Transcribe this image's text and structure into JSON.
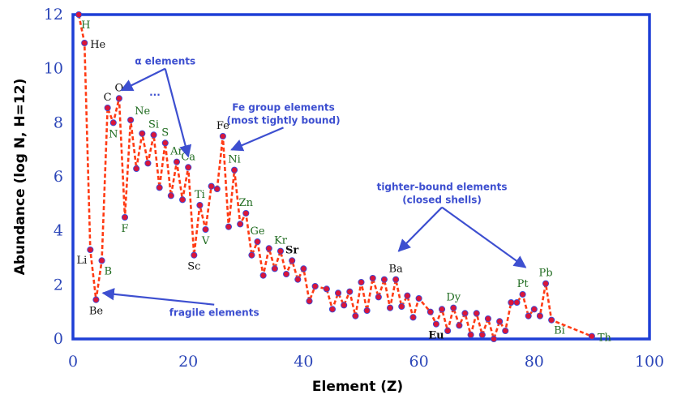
{
  "colors": {
    "frame": "#1e3fd6",
    "tick": "#2c46b8",
    "line": "#ff3b14",
    "marker_fill": "#d9153a",
    "marker_stroke": "#3a4bd8",
    "label_green": "#1f6b1f",
    "label_black": "#111111",
    "annotation": "#3d4fd0"
  },
  "chart_data": {
    "type": "line",
    "xlabel": "Element (Z)",
    "ylabel": "Abundance (log N, H=12)",
    "xlim": [
      0,
      100
    ],
    "ylim": [
      0,
      12
    ],
    "xticks": [
      0,
      20,
      40,
      60,
      80,
      100
    ],
    "yticks": [
      0,
      2,
      4,
      6,
      8,
      10,
      12
    ],
    "grid": false,
    "series": [
      {
        "points": [
          [
            1,
            12.0
          ],
          [
            2,
            10.95
          ],
          [
            3,
            3.3
          ],
          [
            4,
            1.45
          ],
          [
            5,
            2.9
          ],
          [
            6,
            8.55
          ],
          [
            7,
            8.0
          ],
          [
            8,
            8.9
          ],
          [
            9,
            4.5
          ],
          [
            10,
            8.1
          ],
          [
            11,
            6.3
          ],
          [
            12,
            7.6
          ],
          [
            13,
            6.5
          ],
          [
            14,
            7.55
          ],
          [
            15,
            5.6
          ],
          [
            16,
            7.25
          ],
          [
            17,
            5.3
          ],
          [
            18,
            6.55
          ],
          [
            19,
            5.15
          ],
          [
            20,
            6.35
          ],
          [
            21,
            3.1
          ],
          [
            22,
            4.95
          ],
          [
            23,
            4.05
          ],
          [
            24,
            5.65
          ],
          [
            25,
            5.55
          ],
          [
            26,
            7.5
          ],
          [
            27,
            4.15
          ],
          [
            28,
            6.25
          ],
          [
            29,
            4.25
          ],
          [
            30,
            4.65
          ],
          [
            31,
            3.1
          ],
          [
            32,
            3.6
          ],
          [
            33,
            2.35
          ],
          [
            34,
            3.35
          ],
          [
            35,
            2.6
          ],
          [
            36,
            3.25
          ],
          [
            37,
            2.4
          ],
          [
            38,
            2.9
          ],
          [
            39,
            2.2
          ],
          [
            40,
            2.6
          ],
          [
            41,
            1.4
          ],
          [
            42,
            1.95
          ],
          [
            44,
            1.85
          ],
          [
            45,
            1.1
          ],
          [
            46,
            1.7
          ],
          [
            47,
            1.25
          ],
          [
            48,
            1.75
          ],
          [
            49,
            0.85
          ],
          [
            50,
            2.1
          ],
          [
            51,
            1.05
          ],
          [
            52,
            2.25
          ],
          [
            53,
            1.55
          ],
          [
            54,
            2.2
          ],
          [
            55,
            1.15
          ],
          [
            56,
            2.2
          ],
          [
            57,
            1.2
          ],
          [
            58,
            1.6
          ],
          [
            59,
            0.8
          ],
          [
            60,
            1.5
          ],
          [
            62,
            1.0
          ],
          [
            63,
            0.55
          ],
          [
            64,
            1.1
          ],
          [
            65,
            0.3
          ],
          [
            66,
            1.15
          ],
          [
            67,
            0.5
          ],
          [
            68,
            0.95
          ],
          [
            69,
            0.15
          ],
          [
            70,
            0.95
          ],
          [
            71,
            0.15
          ],
          [
            72,
            0.75
          ],
          [
            73,
            0.0
          ],
          [
            74,
            0.65
          ],
          [
            75,
            0.3
          ],
          [
            76,
            1.35
          ],
          [
            77,
            1.35
          ],
          [
            78,
            1.65
          ],
          [
            79,
            0.85
          ],
          [
            80,
            1.1
          ],
          [
            81,
            0.85
          ],
          [
            82,
            2.05
          ],
          [
            83,
            0.7
          ],
          [
            90,
            0.1
          ]
        ]
      }
    ],
    "element_labels": [
      {
        "text": "H",
        "z": 1,
        "y": 12.0,
        "color": "green",
        "bold": false,
        "pos": "below-right"
      },
      {
        "text": "He",
        "z": 2,
        "y": 10.95,
        "color": "black",
        "bold": false,
        "pos": "right"
      },
      {
        "text": "Li",
        "z": 3,
        "y": 3.3,
        "color": "black",
        "bold": false,
        "pos": "below-left"
      },
      {
        "text": "Be",
        "z": 4,
        "y": 1.45,
        "color": "black",
        "bold": false,
        "pos": "below"
      },
      {
        "text": "B",
        "z": 5,
        "y": 2.9,
        "color": "green",
        "bold": false,
        "pos": "below-right"
      },
      {
        "text": "C",
        "z": 6,
        "y": 8.55,
        "color": "black",
        "bold": false,
        "pos": "above"
      },
      {
        "text": "N",
        "z": 7,
        "y": 8.0,
        "color": "green",
        "bold": false,
        "pos": "below"
      },
      {
        "text": "O",
        "z": 8,
        "y": 8.9,
        "color": "black",
        "bold": false,
        "pos": "above"
      },
      {
        "text": "F",
        "z": 9,
        "y": 4.5,
        "color": "green",
        "bold": false,
        "pos": "below"
      },
      {
        "text": "Ne",
        "z": 10,
        "y": 8.1,
        "color": "green",
        "bold": false,
        "pos": "above-right"
      },
      {
        "text": "Si",
        "z": 14,
        "y": 7.55,
        "color": "green",
        "bold": false,
        "pos": "above"
      },
      {
        "text": "S",
        "z": 16,
        "y": 7.25,
        "color": "green",
        "bold": false,
        "pos": "above"
      },
      {
        "text": "Ar",
        "z": 18,
        "y": 6.55,
        "color": "green",
        "bold": false,
        "pos": "above"
      },
      {
        "text": "Ca",
        "z": 20,
        "y": 6.35,
        "color": "green",
        "bold": false,
        "pos": "above"
      },
      {
        "text": "Sc",
        "z": 21,
        "y": 3.1,
        "color": "black",
        "bold": false,
        "pos": "below"
      },
      {
        "text": "Ti",
        "z": 22,
        "y": 4.95,
        "color": "green",
        "bold": false,
        "pos": "above"
      },
      {
        "text": "V",
        "z": 23,
        "y": 4.05,
        "color": "green",
        "bold": false,
        "pos": "below"
      },
      {
        "text": "Fe",
        "z": 26,
        "y": 7.5,
        "color": "black",
        "bold": false,
        "pos": "above"
      },
      {
        "text": "Ni",
        "z": 28,
        "y": 6.25,
        "color": "green",
        "bold": false,
        "pos": "above"
      },
      {
        "text": "Zn",
        "z": 30,
        "y": 4.65,
        "color": "green",
        "bold": false,
        "pos": "above"
      },
      {
        "text": "Ge",
        "z": 32,
        "y": 3.6,
        "color": "green",
        "bold": false,
        "pos": "above"
      },
      {
        "text": "Kr",
        "z": 36,
        "y": 3.25,
        "color": "green",
        "bold": false,
        "pos": "above"
      },
      {
        "text": "Sr",
        "z": 38,
        "y": 2.9,
        "color": "black",
        "bold": true,
        "pos": "above"
      },
      {
        "text": "Ba",
        "z": 56,
        "y": 2.2,
        "color": "black",
        "bold": false,
        "pos": "above"
      },
      {
        "text": "Dy",
        "z": 66,
        "y": 1.15,
        "color": "green",
        "bold": false,
        "pos": "above"
      },
      {
        "text": "Eu",
        "z": 63,
        "y": 0.55,
        "color": "black",
        "bold": true,
        "pos": "below"
      },
      {
        "text": "Pt",
        "z": 78,
        "y": 1.65,
        "color": "green",
        "bold": false,
        "pos": "above"
      },
      {
        "text": "Pb",
        "z": 82,
        "y": 2.05,
        "color": "green",
        "bold": false,
        "pos": "above"
      },
      {
        "text": "Bi",
        "z": 83,
        "y": 0.7,
        "color": "green",
        "bold": false,
        "pos": "below-right"
      },
      {
        "text": "Th",
        "z": 90,
        "y": 0.1,
        "color": "green",
        "bold": false,
        "pos": "right"
      }
    ],
    "annotations": [
      {
        "lines": [
          "α elements"
        ],
        "at": [
          16,
          10.15
        ],
        "arrows": [
          [
            8.4,
            9.2
          ],
          [
            20,
            6.75
          ]
        ]
      },
      {
        "lines": [
          "..."
        ],
        "at": [
          14.2,
          9.0
        ],
        "arrows": []
      },
      {
        "lines": [
          "Fe group elements",
          "(most tightly bound)"
        ],
        "at": [
          36.5,
          8.45
        ],
        "arrows": [
          [
            27.5,
            7.0
          ]
        ]
      },
      {
        "lines": [
          "tighter-bound elements",
          "(closed shells)"
        ],
        "at": [
          64,
          5.5
        ],
        "arrows": [
          [
            56.5,
            3.25
          ],
          [
            78.5,
            2.65
          ]
        ]
      },
      {
        "lines": [
          "fragile elements"
        ],
        "at": [
          24.5,
          0.85
        ],
        "arrows": [
          [
            5.2,
            1.7
          ]
        ]
      }
    ]
  }
}
